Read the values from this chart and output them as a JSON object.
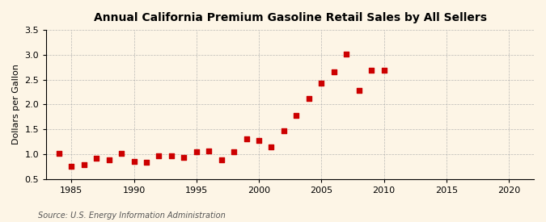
{
  "title": "Annual California Premium Gasoline Retail Sales by All Sellers",
  "ylabel": "Dollars per Gallon",
  "source": "Source: U.S. Energy Information Administration",
  "background_color": "#fdf5e6",
  "dot_color": "#cc0000",
  "xlim": [
    1983,
    2022
  ],
  "ylim": [
    0.5,
    3.5
  ],
  "xticks": [
    1985,
    1990,
    1995,
    2000,
    2005,
    2010,
    2015,
    2020
  ],
  "yticks": [
    0.5,
    1.0,
    1.5,
    2.0,
    2.5,
    3.0,
    3.5
  ],
  "years": [
    1984,
    1985,
    1986,
    1987,
    1988,
    1989,
    1990,
    1991,
    1992,
    1993,
    1994,
    1995,
    1996,
    1997,
    1998,
    1999,
    2000,
    2001,
    2002,
    2003,
    2004,
    2005,
    2006,
    2007,
    2008,
    2009,
    2010
  ],
  "values": [
    1.01,
    0.75,
    0.78,
    0.92,
    0.88,
    1.01,
    0.85,
    0.84,
    0.97,
    0.96,
    0.94,
    1.05,
    1.07,
    0.89,
    1.05,
    1.3,
    1.28,
    1.15,
    1.47,
    1.78,
    2.12,
    2.43,
    2.65,
    3.02,
    2.28,
    2.69,
    2.69
  ]
}
